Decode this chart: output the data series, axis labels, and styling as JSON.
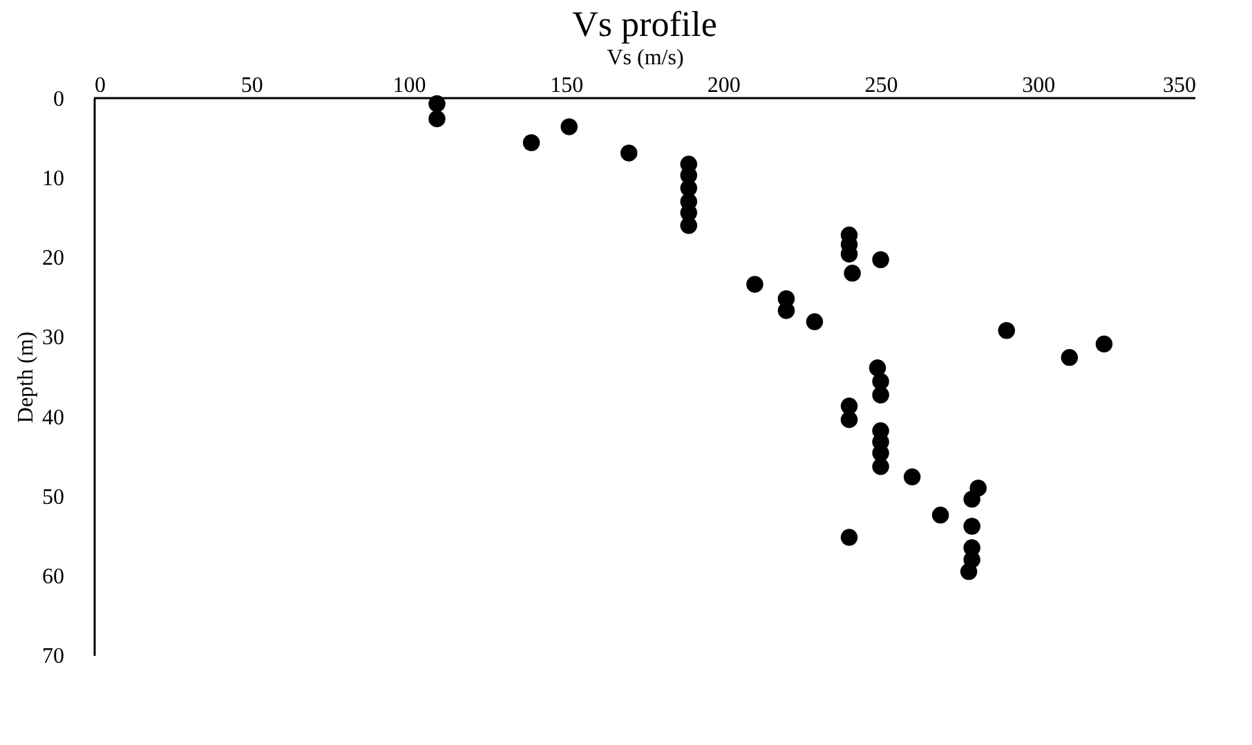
{
  "chart_data": {
    "type": "scatter",
    "title": "Vs profile",
    "xlabel": "Vs (m/s)",
    "ylabel": "Depth (m)",
    "x": [
      109,
      109,
      139,
      151,
      170,
      189,
      189,
      189,
      189,
      189,
      189,
      240,
      240,
      240,
      250,
      241,
      210,
      220,
      220,
      229,
      290,
      310,
      321,
      249,
      250,
      250,
      240,
      240,
      250,
      250,
      250,
      250,
      260,
      281,
      279,
      269,
      240,
      279,
      279,
      279,
      278
    ],
    "series": [
      {
        "color": "#000000",
        "values": [
          0.7,
          2.6,
          5.6,
          3.6,
          6.9,
          8.3,
          9.7,
          11.3,
          13.0,
          14.4,
          16.0,
          17.2,
          18.4,
          19.6,
          20.3,
          22.0,
          23.4,
          25.2,
          26.7,
          28.1,
          29.2,
          32.6,
          30.9,
          33.9,
          35.6,
          37.3,
          38.7,
          40.4,
          41.8,
          43.2,
          44.6,
          46.3,
          47.6,
          49.0,
          50.4,
          52.4,
          55.2,
          53.8,
          56.5,
          58.0,
          59.5
        ]
      }
    ],
    "xlim": [
      0,
      350
    ],
    "xticks": [
      0,
      50,
      100,
      150,
      200,
      250,
      300,
      350
    ],
    "ylim": [
      70,
      0
    ],
    "yticks": [
      0,
      10,
      20,
      30,
      40,
      50,
      60,
      70
    ],
    "grid": false,
    "legend": false,
    "marker": "circle"
  }
}
